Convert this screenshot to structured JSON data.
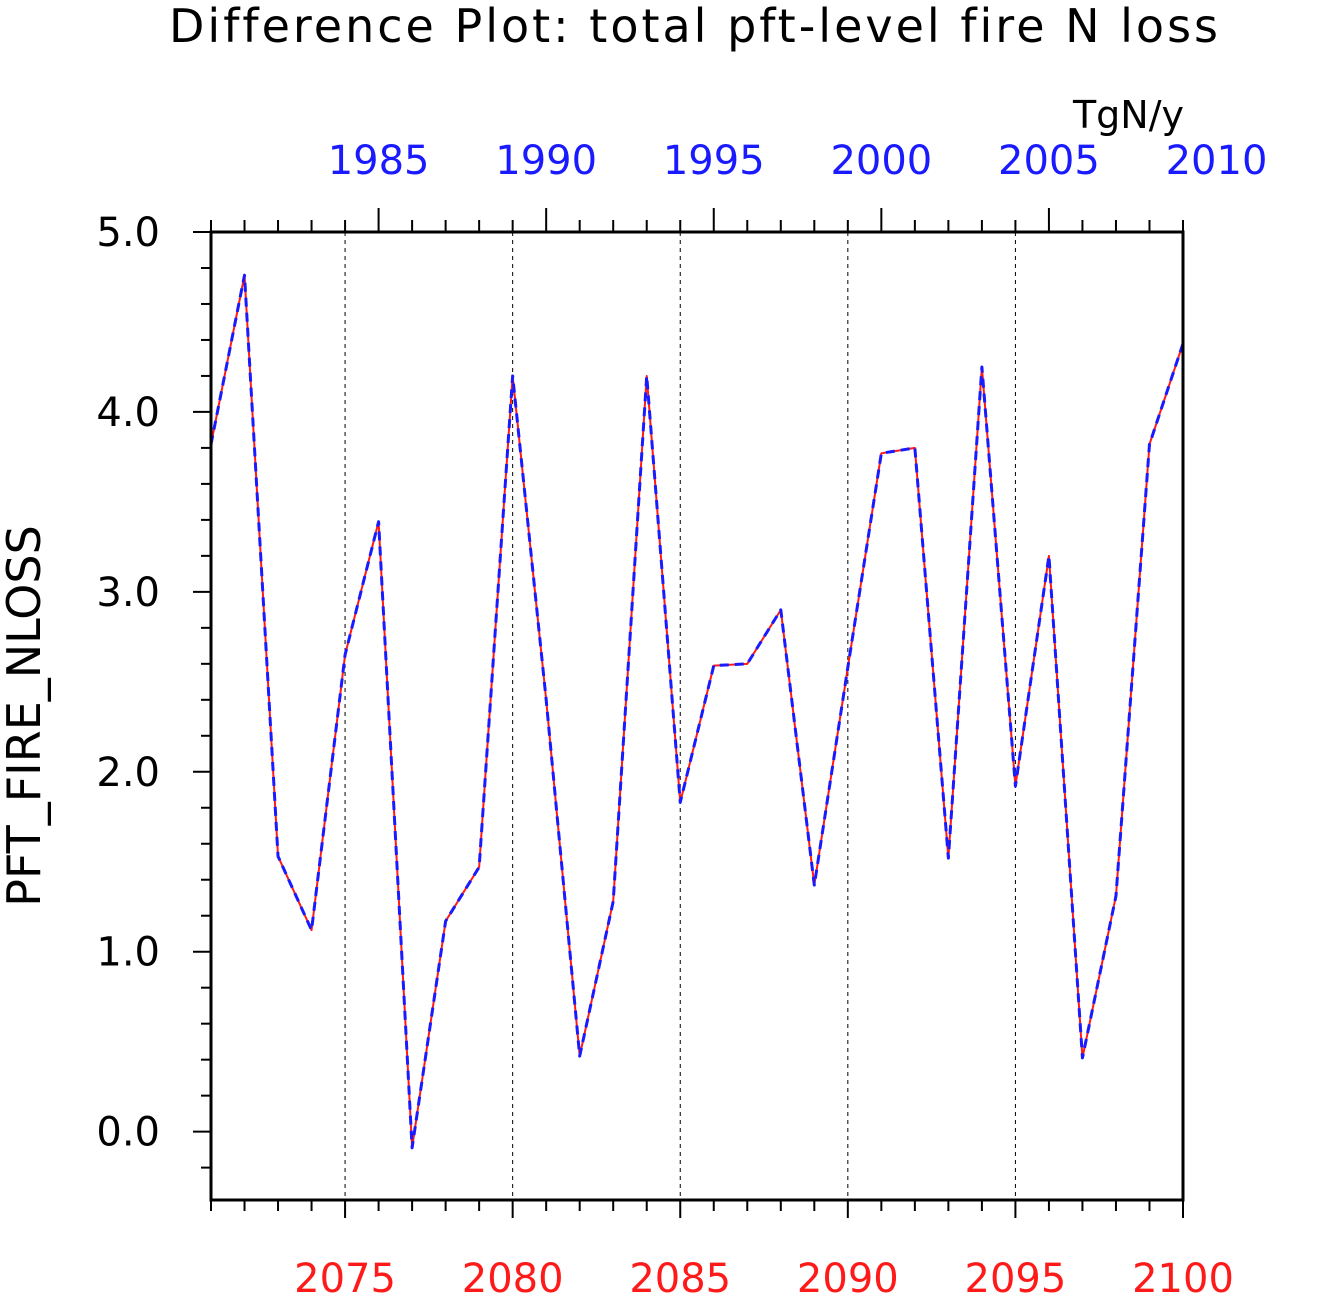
{
  "chart_data": {
    "type": "line",
    "title": "Difference Plot: total pft-level fire N loss",
    "units": "TgN/y",
    "ylabel": "PFT_FIRE_NLOSS",
    "ylim": [
      -0.38,
      5.0
    ],
    "y_ticks": [
      "0.0",
      "1.0",
      "2.0",
      "3.0",
      "4.0",
      "5.0"
    ],
    "y_tick_values": [
      0,
      1,
      2,
      3,
      4,
      5
    ],
    "x_bottom": {
      "range": [
        2071,
        2100
      ],
      "ticks": [
        "2075",
        "2080",
        "2085",
        "2090",
        "2095",
        "2100"
      ],
      "tick_values": [
        2075,
        2080,
        2085,
        2090,
        2095,
        2100
      ],
      "color": "#ff1a1a"
    },
    "x_top": {
      "range": [
        1980,
        2009
      ],
      "ticks": [
        "1985",
        "1990",
        "1995",
        "2000",
        "2005",
        "2010"
      ],
      "tick_values": [
        1985,
        1990,
        1995,
        2000,
        2005,
        2010
      ],
      "color": "#1a1aff"
    },
    "grid": "vertical dashed at bottom-axis major ticks",
    "x": [
      2071,
      2072,
      2073,
      2074,
      2075,
      2076,
      2077,
      2078,
      2079,
      2080,
      2081,
      2082,
      2083,
      2084,
      2085,
      2086,
      2087,
      2088,
      2089,
      2090,
      2091,
      2092,
      2093,
      2094,
      2095,
      2096,
      2097,
      2098,
      2099,
      2100
    ],
    "series": [
      {
        "color": "#ff1a1a",
        "style": "solid",
        "values": [
          3.82,
          4.76,
          1.53,
          1.12,
          2.65,
          3.39,
          -0.09,
          1.17,
          1.47,
          4.2,
          2.4,
          0.42,
          1.28,
          4.2,
          1.83,
          2.59,
          2.6,
          2.9,
          1.37,
          2.58,
          3.77,
          3.8,
          1.52,
          4.25,
          1.92,
          3.2,
          0.41,
          1.31,
          3.82,
          4.38
        ]
      },
      {
        "color": "#1a1aff",
        "style": "dashed",
        "values": [
          3.82,
          4.76,
          1.53,
          1.12,
          2.65,
          3.39,
          -0.09,
          1.17,
          1.47,
          4.2,
          2.4,
          0.42,
          1.28,
          4.2,
          1.83,
          2.59,
          2.6,
          2.9,
          1.37,
          2.58,
          3.77,
          3.8,
          1.52,
          4.25,
          1.92,
          3.2,
          0.41,
          1.31,
          3.82,
          4.38
        ]
      }
    ]
  }
}
